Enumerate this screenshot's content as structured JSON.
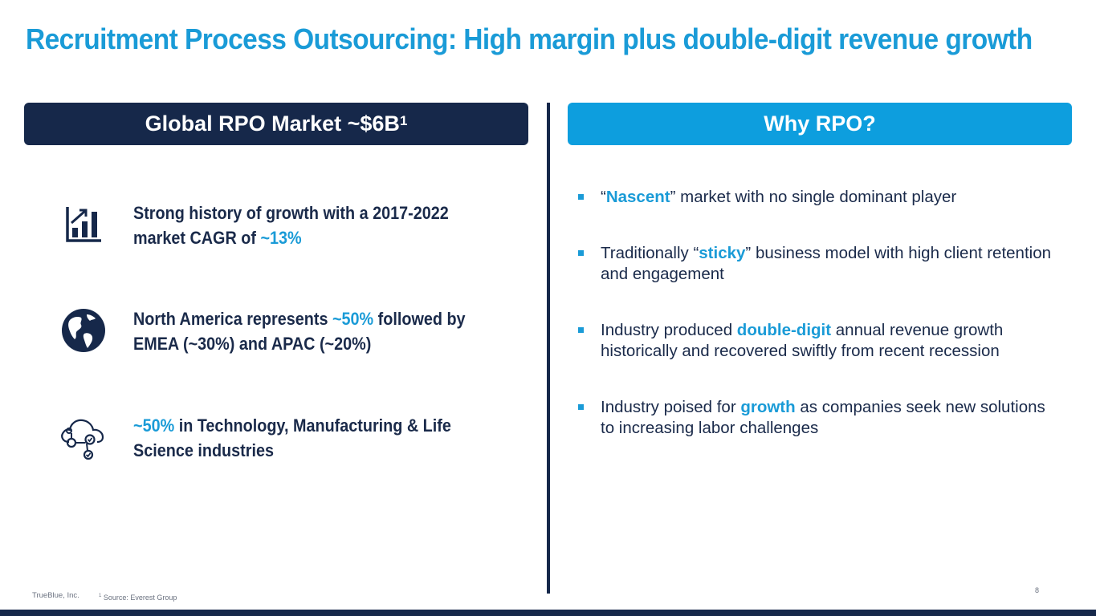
{
  "title": "Recruitment Process Outsourcing: High margin plus double-digit revenue growth",
  "left_panel": {
    "header": "Global RPO Market ~$6B",
    "header_sup": "1",
    "facts": [
      {
        "icon": "bar-chart-growth-icon",
        "pre": "Strong history of growth with a 2017-2022 market CAGR of ",
        "accent": "~13%",
        "post": ""
      },
      {
        "icon": "globe-icon",
        "pre": "North America represents ",
        "accent": "~50%",
        "post": " followed by EMEA (~30%) and APAC (~20%)"
      },
      {
        "icon": "cloud-network-icon",
        "pre": "",
        "accent": "~50%",
        "post": " in Technology, Manufacturing & Life Science industries"
      }
    ]
  },
  "right_panel": {
    "header": "Why RPO?",
    "bullets": [
      {
        "pre": "“",
        "accent": "Nascent",
        "post": "” market with no single dominant player"
      },
      {
        "pre": "Traditionally “",
        "accent": "sticky",
        "post": "” business model with high client retention and engagement"
      },
      {
        "pre": "Industry produced ",
        "accent": "double-digit",
        "post": " annual revenue growth historically and recovered swiftly from recent recession"
      },
      {
        "pre": "Industry poised for ",
        "accent": "growth",
        "post": " as companies seek new solutions to increasing labor challenges"
      }
    ]
  },
  "footer": {
    "company": "TrueBlue, Inc.",
    "source_sup": "1",
    "source": " Source: Everest Group",
    "page_number": "8"
  },
  "colors": {
    "accent": "#1a9bd7",
    "navy": "#16284a",
    "header_blue": "#0d9ede"
  }
}
